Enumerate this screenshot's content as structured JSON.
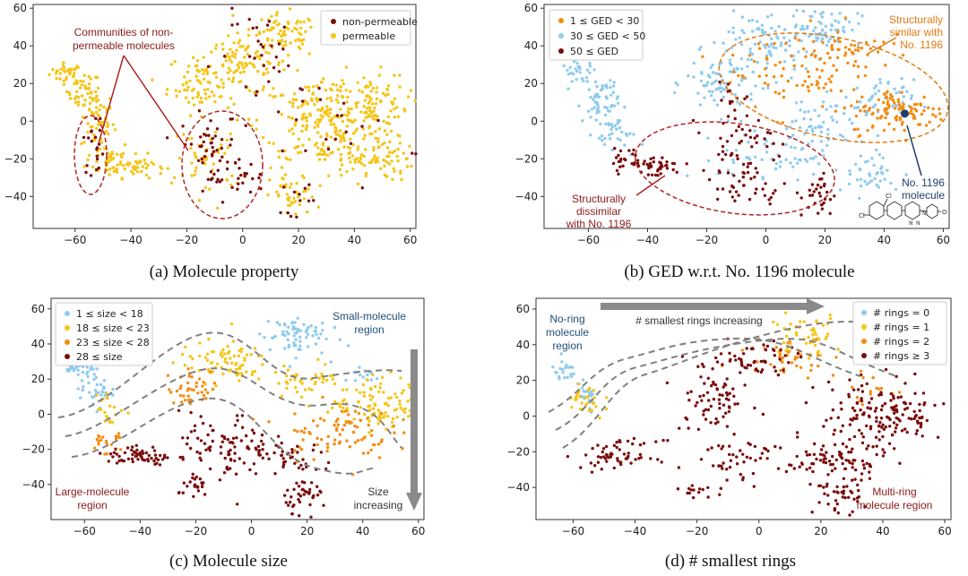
{
  "colors": {
    "dark_red": "#7b0d0d",
    "yellow": "#f5c518",
    "light_blue": "#8fcbee",
    "orange": "#f58c12",
    "navy": "#1f3f6b",
    "grey_arrow": "#8a8a8a",
    "dash_grey": "#808080"
  },
  "chart_data": [
    {
      "id": "a",
      "type": "scatter",
      "caption": "(a) Molecule property",
      "xlim": [
        -75,
        62
      ],
      "ylim": [
        -57,
        62
      ],
      "xticks": [
        -60,
        -40,
        -20,
        0,
        20,
        40,
        60
      ],
      "yticks": [
        -40,
        -20,
        0,
        20,
        40,
        60
      ],
      "tick_labels_x": [
        "−60",
        "−40",
        "−20",
        "0",
        "20",
        "40",
        "60"
      ],
      "tick_labels_y": [
        "−40",
        "−20",
        "0",
        "20",
        "40",
        "60"
      ],
      "legend_position": "top-right",
      "legend": [
        {
          "label": "non-permeable",
          "color": "#7b0d0d"
        },
        {
          "label": "permeable",
          "color": "#f5c518"
        }
      ],
      "annotations": [
        {
          "text_lines": [
            "Communities of non-",
            "permeable molecules"
          ],
          "color": "#8b1a1a"
        }
      ],
      "series": [
        {
          "name": "permeable",
          "color": "#f5c518",
          "clusters": [
            {
              "x": -63,
              "y": 26,
              "sx": 3,
              "sy": 2.5,
              "n": 30
            },
            {
              "x": -57,
              "y": 16,
              "sx": 3,
              "sy": 5,
              "n": 45
            },
            {
              "x": -52,
              "y": 0,
              "sx": 3,
              "sy": 8,
              "n": 55
            },
            {
              "x": -48,
              "y": -20,
              "sx": 4,
              "sy": 5,
              "n": 40
            },
            {
              "x": -38,
              "y": -24,
              "sx": 5,
              "sy": 3,
              "n": 45
            },
            {
              "x": -15,
              "y": 20,
              "sx": 6,
              "sy": 8,
              "n": 70
            },
            {
              "x": 0,
              "y": 30,
              "sx": 8,
              "sy": 8,
              "n": 100
            },
            {
              "x": 15,
              "y": 45,
              "sx": 6,
              "sy": 6,
              "n": 70
            },
            {
              "x": 30,
              "y": 0,
              "sx": 12,
              "sy": 12,
              "n": 220
            },
            {
              "x": 45,
              "y": 10,
              "sx": 7,
              "sy": 8,
              "n": 90
            },
            {
              "x": 45,
              "y": -20,
              "sx": 8,
              "sy": 6,
              "n": 90
            },
            {
              "x": 18,
              "y": -40,
              "sx": 4,
              "sy": 6,
              "n": 40
            },
            {
              "x": -12,
              "y": -20,
              "sx": 6,
              "sy": 10,
              "n": 50
            }
          ]
        },
        {
          "name": "non-permeable",
          "color": "#7b0d0d",
          "clusters": [
            {
              "x": -53,
              "y": -12,
              "sx": 2,
              "sy": 8,
              "n": 20
            },
            {
              "x": -12,
              "y": -12,
              "sx": 5,
              "sy": 8,
              "n": 40
            },
            {
              "x": -4,
              "y": -30,
              "sx": 6,
              "sy": 5,
              "n": 30
            },
            {
              "x": 10,
              "y": 35,
              "sx": 10,
              "sy": 12,
              "n": 30
            },
            {
              "x": 35,
              "y": -5,
              "sx": 15,
              "sy": 15,
              "n": 25
            },
            {
              "x": 20,
              "y": -40,
              "sx": 3,
              "sy": 5,
              "n": 12
            }
          ]
        }
      ]
    },
    {
      "id": "b",
      "type": "scatter",
      "caption": "(b) GED w.r.t. No. 1196 molecule",
      "xlim": [
        -75,
        62
      ],
      "ylim": [
        -57,
        62
      ],
      "xticks": [
        -60,
        -40,
        -20,
        0,
        20,
        40,
        60
      ],
      "yticks": [
        -40,
        -20,
        0,
        20,
        40,
        60
      ],
      "tick_labels_x": [
        "−60",
        "−40",
        "−20",
        "0",
        "20",
        "40",
        "60"
      ],
      "tick_labels_y": [
        "−40",
        "−20",
        "0",
        "20",
        "40",
        "60"
      ],
      "legend_position": "top-left",
      "legend": [
        {
          "label": "1 ≤ GED < 30",
          "color": "#f58c12"
        },
        {
          "label": "30 ≤ GED < 50",
          "color": "#8fcbee"
        },
        {
          "label": "50 ≤ GED",
          "color": "#7b0d0d"
        }
      ],
      "highlight_point": {
        "x": 47,
        "y": 4,
        "color": "#1f3f6b"
      },
      "annotations": [
        {
          "text_lines": [
            "Structurally",
            "similar with",
            "No. 1196"
          ],
          "color": "#e07a12"
        },
        {
          "text_lines": [
            "Structurally",
            "dissimilar",
            "with No. 1196"
          ],
          "color": "#8b1a1a"
        },
        {
          "text_lines": [
            "No. 1196",
            "molecule"
          ],
          "color": "#1f3f6b"
        }
      ],
      "structure_labels": [
        "Cl",
        "Cl",
        "N",
        "N",
        "N",
        "O"
      ],
      "series": [
        {
          "name": "30 ≤ GED < 50",
          "color": "#8fcbee",
          "clusters": [
            {
              "x": -63,
              "y": 26,
              "sx": 3,
              "sy": 3,
              "n": 30
            },
            {
              "x": -56,
              "y": 10,
              "sx": 3,
              "sy": 8,
              "n": 60
            },
            {
              "x": -50,
              "y": -8,
              "sx": 3,
              "sy": 6,
              "n": 30
            },
            {
              "x": -15,
              "y": 20,
              "sx": 6,
              "sy": 8,
              "n": 70
            },
            {
              "x": 0,
              "y": 40,
              "sx": 10,
              "sy": 10,
              "n": 100
            },
            {
              "x": 20,
              "y": 50,
              "sx": 6,
              "sy": 5,
              "n": 60
            },
            {
              "x": 15,
              "y": -5,
              "sx": 8,
              "sy": 10,
              "n": 70
            },
            {
              "x": 38,
              "y": 10,
              "sx": 6,
              "sy": 6,
              "n": 50
            },
            {
              "x": 35,
              "y": -28,
              "sx": 6,
              "sy": 6,
              "n": 40
            },
            {
              "x": 0,
              "y": -20,
              "sx": 8,
              "sy": 6,
              "n": 40
            }
          ]
        },
        {
          "name": "1 ≤ GED < 30",
          "color": "#f58c12",
          "clusters": [
            {
              "x": 10,
              "y": 28,
              "sx": 12,
              "sy": 12,
              "n": 80
            },
            {
              "x": 45,
              "y": 5,
              "sx": 8,
              "sy": 6,
              "n": 110
            },
            {
              "x": 30,
              "y": 40,
              "sx": 6,
              "sy": 6,
              "n": 40
            }
          ]
        },
        {
          "name": "50 ≤ GED",
          "color": "#7b0d0d",
          "clusters": [
            {
              "x": -48,
              "y": -20,
              "sx": 3,
              "sy": 3,
              "n": 20
            },
            {
              "x": -38,
              "y": -24,
              "sx": 5,
              "sy": 3,
              "n": 40
            },
            {
              "x": -10,
              "y": -12,
              "sx": 6,
              "sy": 8,
              "n": 50
            },
            {
              "x": -5,
              "y": -35,
              "sx": 6,
              "sy": 6,
              "n": 35
            },
            {
              "x": 18,
              "y": -40,
              "sx": 3,
              "sy": 6,
              "n": 30
            },
            {
              "x": -12,
              "y": 15,
              "sx": 3,
              "sy": 5,
              "n": 12
            }
          ]
        }
      ]
    },
    {
      "id": "c",
      "type": "scatter",
      "caption": "(c) Molecule size",
      "xlim": [
        -72,
        62
      ],
      "ylim": [
        -60,
        66
      ],
      "xticks": [
        -60,
        -40,
        -20,
        0,
        20,
        40,
        60
      ],
      "yticks": [
        -40,
        -20,
        0,
        20,
        40,
        60
      ],
      "tick_labels_x": [
        "−60",
        "−40",
        "−20",
        "0",
        "20",
        "40",
        "60"
      ],
      "tick_labels_y": [
        "−40",
        "−20",
        "0",
        "20",
        "40",
        "60"
      ],
      "legend_position": "top-left",
      "legend": [
        {
          "label": "1 ≤ size < 18",
          "color": "#8fcbee"
        },
        {
          "label": "18 ≤ size < 23",
          "color": "#f5c518"
        },
        {
          "label": "23 ≤ size < 28",
          "color": "#f58c12"
        },
        {
          "label": "28 ≤ size",
          "color": "#7b0d0d"
        }
      ],
      "annotations": [
        {
          "text_lines": [
            "Small-molecule",
            "region"
          ],
          "color": "#1f4e79"
        },
        {
          "text_lines": [
            "Large-molecule",
            "region"
          ],
          "color": "#8b1a1a"
        },
        {
          "text_lines": [
            "Size",
            "increasing"
          ],
          "color": "#333333"
        }
      ],
      "series": [
        {
          "name": "1 ≤ size < 18",
          "color": "#8fcbee",
          "clusters": [
            {
              "x": -63,
              "y": 27,
              "sx": 3,
              "sy": 2,
              "n": 30
            },
            {
              "x": -56,
              "y": 14,
              "sx": 3,
              "sy": 5,
              "n": 40
            },
            {
              "x": 15,
              "y": 45,
              "sx": 6,
              "sy": 6,
              "n": 70
            },
            {
              "x": 40,
              "y": 22,
              "sx": 3,
              "sy": 3,
              "n": 15
            }
          ]
        },
        {
          "name": "18 ≤ size < 23",
          "color": "#f5c518",
          "clusters": [
            {
              "x": -10,
              "y": 30,
              "sx": 8,
              "sy": 6,
              "n": 80
            },
            {
              "x": 45,
              "y": 5,
              "sx": 8,
              "sy": 8,
              "n": 110
            },
            {
              "x": 20,
              "y": 20,
              "sx": 6,
              "sy": 5,
              "n": 40
            },
            {
              "x": -52,
              "y": 2,
              "sx": 3,
              "sy": 5,
              "n": 20
            }
          ]
        },
        {
          "name": "23 ≤ size < 28",
          "color": "#f58c12",
          "clusters": [
            {
              "x": -20,
              "y": 15,
              "sx": 5,
              "sy": 5,
              "n": 40
            },
            {
              "x": 30,
              "y": -10,
              "sx": 10,
              "sy": 8,
              "n": 80
            },
            {
              "x": -52,
              "y": -15,
              "sx": 3,
              "sy": 4,
              "n": 20
            }
          ]
        },
        {
          "name": "28 ≤ size",
          "color": "#7b0d0d",
          "clusters": [
            {
              "x": -40,
              "y": -24,
              "sx": 6,
              "sy": 3,
              "n": 60
            },
            {
              "x": -10,
              "y": -20,
              "sx": 8,
              "sy": 10,
              "n": 90
            },
            {
              "x": 20,
              "y": -45,
              "sx": 4,
              "sy": 5,
              "n": 40
            },
            {
              "x": -20,
              "y": -42,
              "sx": 3,
              "sy": 3,
              "n": 20
            },
            {
              "x": 15,
              "y": -25,
              "sx": 8,
              "sy": 5,
              "n": 40
            }
          ]
        }
      ]
    },
    {
      "id": "d",
      "type": "scatter",
      "caption": "(d) # smallest rings",
      "xlim": [
        -72,
        62
      ],
      "ylim": [
        -58,
        66
      ],
      "xticks": [
        -60,
        -40,
        -20,
        0,
        20,
        40,
        60
      ],
      "yticks": [
        -40,
        -20,
        0,
        20,
        40,
        60
      ],
      "tick_labels_x": [
        "−60",
        "−40",
        "−20",
        "0",
        "20",
        "40",
        "60"
      ],
      "tick_labels_y": [
        "−40",
        "−20",
        "0",
        "20",
        "40",
        "60"
      ],
      "legend_position": "top-right",
      "legend": [
        {
          "label": "# rings = 0",
          "color": "#8fcbee"
        },
        {
          "label": "# rings = 1",
          "color": "#f5c518"
        },
        {
          "label": "# rings = 2",
          "color": "#f58c12"
        },
        {
          "label": "# rings ≥ 3",
          "color": "#7b0d0d"
        }
      ],
      "annotations": [
        {
          "text_lines": [
            "No-ring",
            "molecule",
            "region"
          ],
          "color": "#1f4e79"
        },
        {
          "text_lines": [
            "# smallest rings increasing"
          ],
          "color": "#333333"
        },
        {
          "text_lines": [
            "Multi-ring",
            "molecule region"
          ],
          "color": "#8b1a1a"
        }
      ],
      "series": [
        {
          "name": "# rings = 0",
          "color": "#8fcbee",
          "clusters": [
            {
              "x": -63,
              "y": 25,
              "sx": 2,
              "sy": 3,
              "n": 20
            },
            {
              "x": -56,
              "y": 10,
              "sx": 2,
              "sy": 4,
              "n": 20
            }
          ]
        },
        {
          "name": "# rings = 1",
          "color": "#f5c518",
          "clusters": [
            {
              "x": -56,
              "y": 8,
              "sx": 3,
              "sy": 6,
              "n": 30
            },
            {
              "x": 15,
              "y": 45,
              "sx": 6,
              "sy": 6,
              "n": 50
            }
          ]
        },
        {
          "name": "# rings = 2",
          "color": "#f58c12",
          "clusters": [
            {
              "x": 10,
              "y": 35,
              "sx": 8,
              "sy": 6,
              "n": 40
            },
            {
              "x": 35,
              "y": 15,
              "sx": 4,
              "sy": 4,
              "n": 15
            }
          ]
        },
        {
          "name": "# rings ≥ 3",
          "color": "#7b0d0d",
          "clusters": [
            {
              "x": -45,
              "y": -22,
              "sx": 6,
              "sy": 4,
              "n": 60
            },
            {
              "x": -15,
              "y": 10,
              "sx": 6,
              "sy": 12,
              "n": 80
            },
            {
              "x": 0,
              "y": 30,
              "sx": 6,
              "sy": 6,
              "n": 50
            },
            {
              "x": 40,
              "y": 0,
              "sx": 10,
              "sy": 10,
              "n": 160
            },
            {
              "x": 25,
              "y": -25,
              "sx": 8,
              "sy": 6,
              "n": 80
            },
            {
              "x": 25,
              "y": -45,
              "sx": 4,
              "sy": 5,
              "n": 40
            },
            {
              "x": -5,
              "y": -25,
              "sx": 6,
              "sy": 6,
              "n": 40
            },
            {
              "x": -20,
              "y": -42,
              "sx": 3,
              "sy": 3,
              "n": 15
            }
          ]
        }
      ]
    }
  ]
}
